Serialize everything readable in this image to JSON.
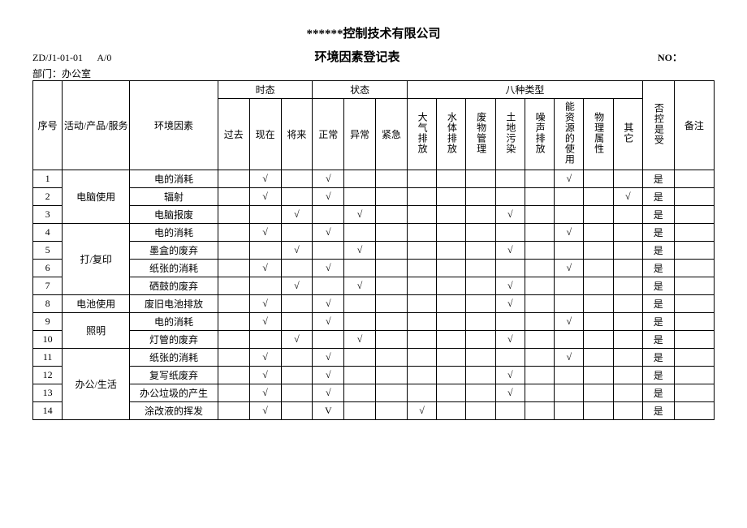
{
  "company": "******控制技术有限公司",
  "doc_code": "ZD/J1-01-01",
  "rev": "A/0",
  "title": "环境因素登记表",
  "no_label": "NO：",
  "dept_label": "部门：",
  "dept": "办公室",
  "headers": {
    "seq": "序号",
    "activity": "活动/产品/服务",
    "factor": "环境因素",
    "time_group": "时态",
    "time": [
      "过去",
      "现在",
      "将来"
    ],
    "state_group": "状态",
    "state": [
      "正常",
      "异常",
      "紧急"
    ],
    "type_group": "八种类型",
    "types": [
      "大气排放",
      "水体排放",
      "废物管理",
      "土地污染",
      "噪声排放",
      "能资源的使用",
      "物理属性",
      "其它"
    ],
    "control": "否控是受",
    "note": "备注"
  },
  "check": "√",
  "checkV": "V",
  "rows": [
    {
      "n": "1",
      "act": "电脑使用",
      "span": 3,
      "f": "电的消耗",
      "t": [
        "",
        "√",
        ""
      ],
      "s": [
        "√",
        "",
        ""
      ],
      "y": [
        "",
        "",
        "",
        "",
        "",
        "√",
        "",
        ""
      ],
      "c": "是",
      "note": ""
    },
    {
      "n": "2",
      "f": "辐射",
      "t": [
        "",
        "√",
        ""
      ],
      "s": [
        "√",
        "",
        ""
      ],
      "y": [
        "",
        "",
        "",
        "",
        "",
        "",
        "",
        "√"
      ],
      "c": "是",
      "note": ""
    },
    {
      "n": "3",
      "f": "电脑报废",
      "t": [
        "",
        "",
        "√"
      ],
      "s": [
        "",
        "√",
        ""
      ],
      "y": [
        "",
        "",
        "",
        "√",
        "",
        "",
        "",
        ""
      ],
      "c": "是",
      "note": ""
    },
    {
      "n": "4",
      "act": "打/复印",
      "span": 4,
      "f": "电的消耗",
      "t": [
        "",
        "√",
        ""
      ],
      "s": [
        "√",
        "",
        ""
      ],
      "y": [
        "",
        "",
        "",
        "",
        "",
        "√",
        "",
        ""
      ],
      "c": "是",
      "note": ""
    },
    {
      "n": "5",
      "f": "墨盒的废弃",
      "t": [
        "",
        "",
        "√"
      ],
      "s": [
        "",
        "√",
        ""
      ],
      "y": [
        "",
        "",
        "",
        "√",
        "",
        "",
        "",
        ""
      ],
      "c": "是",
      "note": ""
    },
    {
      "n": "6",
      "f": "纸张的消耗",
      "t": [
        "",
        "√",
        ""
      ],
      "s": [
        "√",
        "",
        ""
      ],
      "y": [
        "",
        "",
        "",
        "",
        "",
        "√",
        "",
        ""
      ],
      "c": "是",
      "note": ""
    },
    {
      "n": "7",
      "f": "硒鼓的废弃",
      "t": [
        "",
        "",
        "√"
      ],
      "s": [
        "",
        "√",
        ""
      ],
      "y": [
        "",
        "",
        "",
        "√",
        "",
        "",
        "",
        ""
      ],
      "c": "是",
      "note": ""
    },
    {
      "n": "8",
      "act": "电池使用",
      "span": 1,
      "f": "废旧电池排放",
      "t": [
        "",
        "√",
        ""
      ],
      "s": [
        "√",
        "",
        ""
      ],
      "y": [
        "",
        "",
        "",
        "√",
        "",
        "",
        "",
        ""
      ],
      "c": "是",
      "note": ""
    },
    {
      "n": "9",
      "act": "照明",
      "span": 2,
      "f": "电的消耗",
      "t": [
        "",
        "√",
        ""
      ],
      "s": [
        "√",
        "",
        ""
      ],
      "y": [
        "",
        "",
        "",
        "",
        "",
        "√",
        "",
        ""
      ],
      "c": "是",
      "note": ""
    },
    {
      "n": "10",
      "f": "灯管的废弃",
      "t": [
        "",
        "",
        "√"
      ],
      "s": [
        "",
        "√",
        ""
      ],
      "y": [
        "",
        "",
        "",
        "√",
        "",
        "",
        "",
        ""
      ],
      "c": "是",
      "note": ""
    },
    {
      "n": "11",
      "act": "办公/生活",
      "span": 4,
      "f": "纸张的消耗",
      "t": [
        "",
        "√",
        ""
      ],
      "s": [
        "√",
        "",
        ""
      ],
      "y": [
        "",
        "",
        "",
        "",
        "",
        "√",
        "",
        ""
      ],
      "c": "是",
      "note": ""
    },
    {
      "n": "12",
      "f": "复写纸废弃",
      "t": [
        "",
        "√",
        ""
      ],
      "s": [
        "√",
        "",
        ""
      ],
      "y": [
        "",
        "",
        "",
        "√",
        "",
        "",
        "",
        ""
      ],
      "c": "是",
      "note": ""
    },
    {
      "n": "13",
      "f": "办公垃圾的产生",
      "t": [
        "",
        "√",
        ""
      ],
      "s": [
        "√",
        "",
        ""
      ],
      "y": [
        "",
        "",
        "",
        "√",
        "",
        "",
        "",
        ""
      ],
      "c": "是",
      "note": ""
    },
    {
      "n": "14",
      "f": "涂改液的挥发",
      "t": [
        "",
        "√",
        ""
      ],
      "s": [
        "V",
        "",
        ""
      ],
      "y": [
        "√",
        "",
        "",
        "",
        "",
        "",
        "",
        ""
      ],
      "c": "是",
      "note": ""
    }
  ]
}
